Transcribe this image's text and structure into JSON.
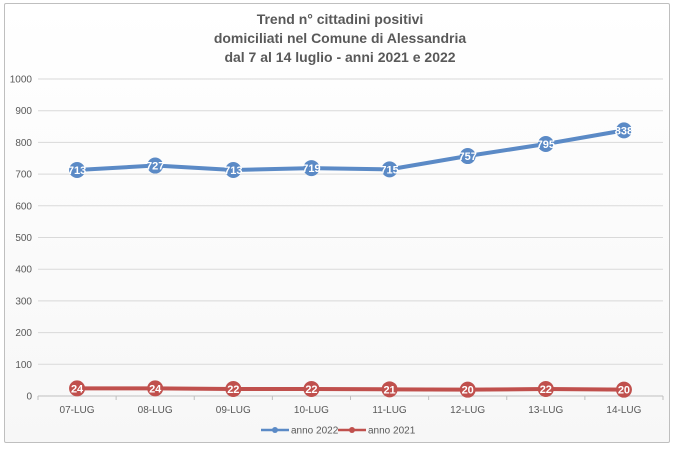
{
  "chart_data": {
    "type": "line",
    "title_lines": [
      "Trend n° cittadini positivi",
      "domiciliati nel Comune di Alessandria",
      "dal 7 al 14 luglio - anni 2021 e 2022"
    ],
    "categories": [
      "07-LUG",
      "08-LUG",
      "09-LUG",
      "10-LUG",
      "11-LUG",
      "12-LUG",
      "13-LUG",
      "14-LUG"
    ],
    "ylim": [
      0,
      1000
    ],
    "yticks": [
      "0",
      "100",
      "200",
      "300",
      "400",
      "500",
      "600",
      "700",
      "800",
      "900",
      "1000"
    ],
    "grid": true,
    "legend_position": "bottom",
    "series": [
      {
        "name": "anno 2022",
        "color": "#5b8ac6",
        "values": [
          713,
          727,
          713,
          719,
          715,
          757,
          795,
          838
        ],
        "labels": [
          "713",
          "727",
          "713",
          "719",
          "715",
          "757",
          "795",
          "838"
        ]
      },
      {
        "name": "anno 2021",
        "color": "#c0504d",
        "values": [
          24,
          24,
          22,
          22,
          21,
          20,
          22,
          20
        ],
        "labels": [
          "24",
          "24",
          "22",
          "22",
          "21",
          "20",
          "22",
          "20"
        ]
      }
    ]
  }
}
